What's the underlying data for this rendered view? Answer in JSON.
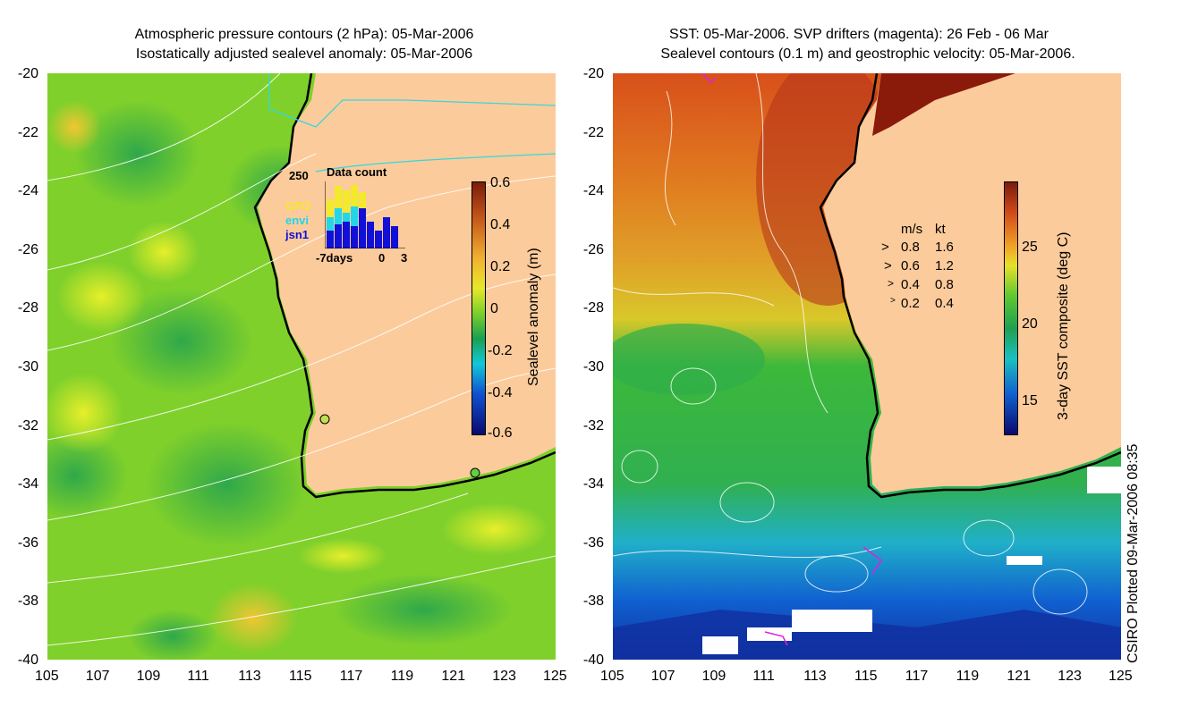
{
  "left": {
    "title_line1": "Atmospheric pressure contours (2 hPa): 05-Mar-2006",
    "title_line2": "Isostatically adjusted sealevel anomaly: 05-Mar-2006",
    "colorbar_label": "Sealevel anomaly (m)",
    "colorbar_ticks": [
      "0.6",
      "0.4",
      "0.2",
      "0",
      "-0.2",
      "-0.4",
      "-0.6"
    ],
    "inset": {
      "title": "Data count",
      "ymax": "250",
      "sat1": "GFO",
      "sat2": "envi",
      "sat3": "jsn1",
      "x_label_left": "-7days",
      "x_label_mid": "0",
      "x_label_right": "3",
      "colors": {
        "gfo": "#f2ea2a",
        "envi": "#22d6e8",
        "jsn1": "#1010d8"
      }
    }
  },
  "right": {
    "title_line1": "SST: 05-Mar-2006. SVP drifters (magenta): 26 Feb - 06 Mar",
    "title_line2": "Sealevel contours (0.1 m) and geostrophic velocity: 05-Mar-2006.",
    "colorbar_label": "3-day SST composite (deg C)",
    "colorbar_ticks": [
      "25",
      "20",
      "15"
    ],
    "velocity_legend": {
      "header_ms": "m/s",
      "header_kt": "kt",
      "rows": [
        {
          "ms": "0.8",
          "kt": "1.6"
        },
        {
          "ms": "0.6",
          "kt": "1.2"
        },
        {
          "ms": "0.4",
          "kt": "0.8"
        },
        {
          "ms": "0.2",
          "kt": "0.4"
        }
      ]
    }
  },
  "axes": {
    "y_ticks": [
      "-20",
      "-22",
      "-24",
      "-26",
      "-28",
      "-30",
      "-32",
      "-34",
      "-36",
      "-38",
      "-40"
    ],
    "x_ticks": [
      "105",
      "107",
      "109",
      "111",
      "113",
      "115",
      "117",
      "119",
      "121",
      "123",
      "125"
    ]
  },
  "credit": "CSIRO Plotted 09-Mar-2006 08:35",
  "colors": {
    "land": "#fccb9b",
    "sea_mid": "#62c82f",
    "coast": "#000000",
    "contour": "#ffffff",
    "pressure": "#55e0e0"
  }
}
